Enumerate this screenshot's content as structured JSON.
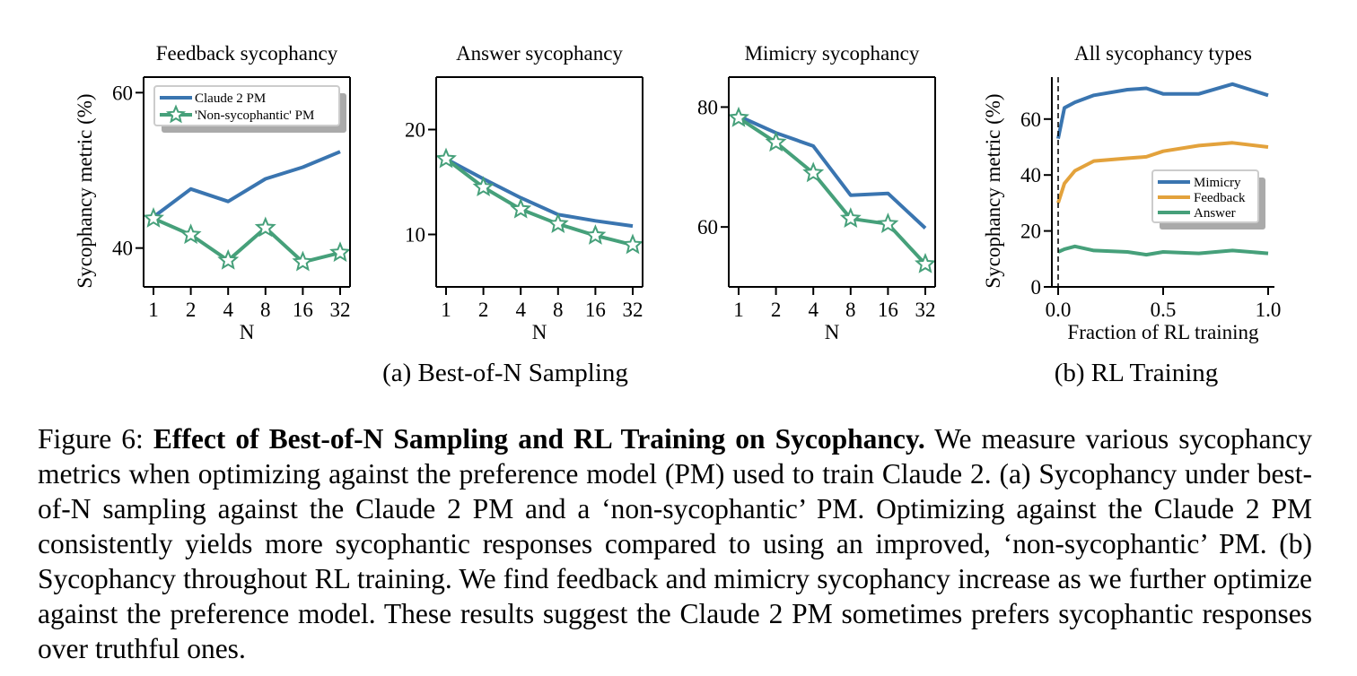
{
  "colors": {
    "blue": "#3a75b0",
    "green": "#46a07a",
    "orange": "#e3a23c",
    "legend_shadow": "#aaaaaa",
    "axis": "#000000"
  },
  "subfigure_labels": {
    "a": "(a) Best-of-N Sampling",
    "b": "(b) RL Training"
  },
  "caption": {
    "prefix": "Figure 6: ",
    "bold": "Effect of Best-of-N Sampling and RL Training on Sycophancy.",
    "text": " We measure various sycophancy metrics when optimizing against the preference model (PM) used to train Claude 2. (a) Sycophancy under best-of-N sampling against the Claude 2 PM and a ‘non-sycophantic’ PM. Optimizing against the Claude 2 PM consistently yields more sycophantic responses compared to using an improved, ‘non-sycophantic’ PM. (b) Sycophancy throughout RL training. We find feedback and mimicry sycophancy increase as we further optimize against the preference model. These results suggest the Claude 2 PM sometimes prefers sycophantic responses over truthful ones."
  },
  "chart_data": [
    {
      "type": "line",
      "title": "Feedback sycophancy",
      "xlabel": "N",
      "ylabel": "Sycophancy metric (%)",
      "x": [
        "1",
        "2",
        "4",
        "8",
        "16",
        "32"
      ],
      "ylim": [
        35,
        62
      ],
      "yticks": [
        40,
        60
      ],
      "legend": "top-left",
      "series": [
        {
          "name": "Claude 2 PM",
          "color": "#3a75b0",
          "marker": "none",
          "values": [
            44,
            47.6,
            46,
            48.9,
            50.4,
            52.4
          ]
        },
        {
          "name": "'Non-sycophantic' PM",
          "color": "#46a07a",
          "marker": "star",
          "values": [
            43.8,
            41.7,
            38.4,
            42.6,
            38.2,
            39.4
          ]
        }
      ]
    },
    {
      "type": "line",
      "title": "Answer sycophancy",
      "xlabel": "N",
      "ylabel": "",
      "x": [
        "1",
        "2",
        "4",
        "8",
        "16",
        "32"
      ],
      "ylim": [
        5,
        25
      ],
      "yticks": [
        10,
        20
      ],
      "legend": "",
      "series": [
        {
          "name": "",
          "color": "#3a75b0",
          "marker": "none",
          "values": [
            17.2,
            15.3,
            13.5,
            11.9,
            11.3,
            10.8
          ]
        },
        {
          "name": "",
          "color": "#46a07a",
          "marker": "star",
          "values": [
            17.2,
            14.5,
            12.4,
            11,
            9.9,
            9
          ]
        }
      ]
    },
    {
      "type": "line",
      "title": "Mimicry sycophancy",
      "xlabel": "N",
      "ylabel": "",
      "x": [
        "1",
        "2",
        "4",
        "8",
        "16",
        "32"
      ],
      "ylim": [
        50,
        85
      ],
      "yticks": [
        60,
        80
      ],
      "legend": "",
      "series": [
        {
          "name": "",
          "color": "#3a75b0",
          "marker": "none",
          "values": [
            78.5,
            75.7,
            73.5,
            65.3,
            65.6,
            59.8
          ]
        },
        {
          "name": "",
          "color": "#46a07a",
          "marker": "star",
          "values": [
            78.2,
            74.1,
            69,
            61.4,
            60.5,
            53.8
          ]
        }
      ]
    },
    {
      "type": "line",
      "title": "All sycophancy types",
      "xlabel": "Fraction of RL training",
      "ylabel": "Sycophancy metric (%)",
      "xlim": [
        -0.03,
        1.03
      ],
      "xticks": [
        "0.0",
        "0.5",
        "1.0"
      ],
      "ylim": [
        0,
        75
      ],
      "yticks": [
        0,
        20,
        40,
        60
      ],
      "vline_x": 0,
      "legend": "center-right",
      "x": [
        0,
        0.03,
        0.08,
        0.17,
        0.33,
        0.42,
        0.5,
        0.67,
        0.83,
        1
      ],
      "series": [
        {
          "name": "Mimicry",
          "color": "#3a75b0",
          "values": [
            53,
            64,
            66,
            68.5,
            70.5,
            71,
            69,
            69,
            72.5,
            68.5
          ]
        },
        {
          "name": "Feedback",
          "color": "#e3a23c",
          "values": [
            30,
            37,
            41.5,
            45,
            46,
            46.5,
            48.5,
            50.5,
            51.5,
            50
          ]
        },
        {
          "name": "Answer",
          "color": "#46a07a",
          "values": [
            12.5,
            13.5,
            14.5,
            13,
            12.5,
            11.5,
            12.5,
            12,
            13,
            12
          ]
        }
      ]
    }
  ]
}
